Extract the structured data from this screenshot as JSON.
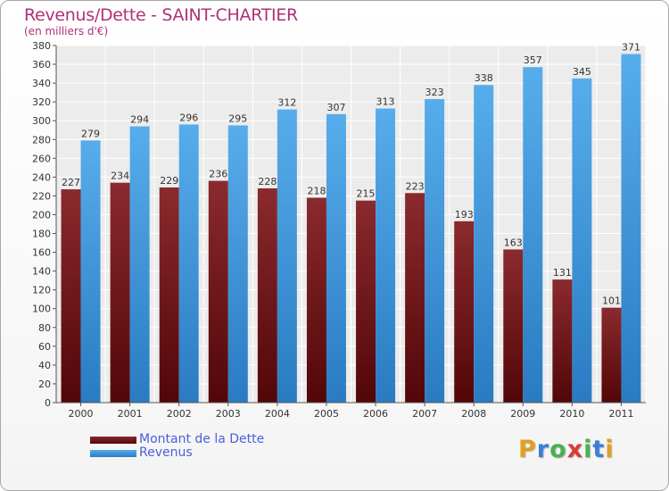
{
  "title": "Revenus/Dette - SAINT-CHARTIER",
  "subtitle": "(en milliers d'€)",
  "logo": {
    "text": "Proxiti",
    "letter_colors": [
      "#e0a020",
      "#3a7fd8",
      "#4caf50",
      "#d83a3a",
      "#4caf50",
      "#3a7fd8",
      "#e0a020"
    ]
  },
  "colors": {
    "dette": "#7a1e22",
    "revenus": "#3f98de",
    "title": "#b0307a",
    "legend_text": "#4b5fd8"
  },
  "chart_data": {
    "type": "bar",
    "title": "Revenus/Dette - SAINT-CHARTIER",
    "ylabel": "(en milliers d'€)",
    "xlabel": "",
    "ylim": [
      0,
      380
    ],
    "ytick_step": 20,
    "grid": true,
    "legend_position": "bottom-left",
    "categories": [
      "2000",
      "2001",
      "2002",
      "2003",
      "2004",
      "2005",
      "2006",
      "2007",
      "2008",
      "2009",
      "2010",
      "2011"
    ],
    "series": [
      {
        "name": "Montant de la Dette",
        "values": [
          227,
          234,
          229,
          236,
          228,
          218,
          215,
          223,
          193,
          163,
          131,
          101
        ]
      },
      {
        "name": "Revenus",
        "values": [
          279,
          294,
          296,
          295,
          312,
          307,
          313,
          323,
          338,
          357,
          345,
          371
        ]
      }
    ]
  }
}
